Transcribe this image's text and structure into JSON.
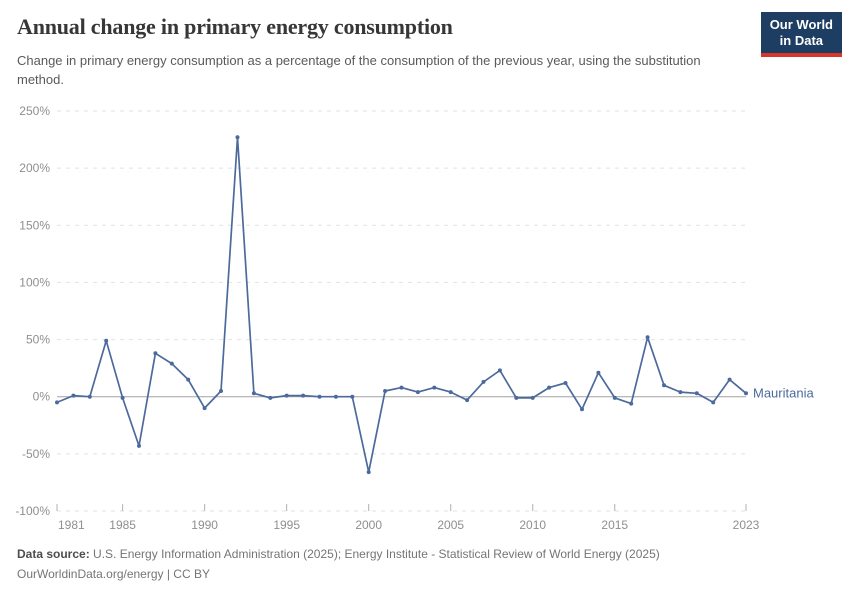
{
  "header": {
    "title": "Annual change in primary energy consumption",
    "subtitle": "Change in primary energy consumption as a percentage of the consumption of the previous year, using the substitution method.",
    "logo": {
      "line1": "Our World",
      "line2": "in Data",
      "bg_color": "#1d3d63",
      "bar_color": "#d8352b"
    }
  },
  "chart_data": {
    "type": "line",
    "title": "Annual change in primary energy consumption",
    "entity_label": "Mauritania",
    "unit": "%",
    "line_color": "#4C6A9C",
    "grid": "dashed horizontal gridlines, solid zero line",
    "legend_position": "end-of-line label",
    "xlim": [
      1981,
      2023
    ],
    "ylim": [
      -100,
      250
    ],
    "yticks": [
      250,
      200,
      150,
      100,
      50,
      0,
      -50,
      -100
    ],
    "xticks": [
      1981,
      1985,
      1990,
      1995,
      2000,
      2005,
      2010,
      2015,
      2023
    ],
    "series": [
      {
        "name": "Mauritania",
        "x": [
          1981,
          1982,
          1983,
          1984,
          1985,
          1986,
          1987,
          1988,
          1989,
          1990,
          1991,
          1992,
          1993,
          1994,
          1995,
          1996,
          1997,
          1998,
          1999,
          2000,
          2001,
          2002,
          2003,
          2004,
          2005,
          2006,
          2007,
          2008,
          2009,
          2010,
          2011,
          2012,
          2013,
          2014,
          2015,
          2016,
          2017,
          2018,
          2019,
          2020,
          2021,
          2022,
          2023
        ],
        "values": [
          -5,
          1,
          0,
          49,
          -1,
          -43,
          38,
          29,
          15,
          -10,
          5,
          227,
          3,
          -1,
          1,
          1,
          0,
          0,
          0,
          -66,
          5,
          8,
          4,
          8,
          4,
          -3,
          13,
          23,
          -1,
          -1,
          8,
          12,
          -11,
          21,
          -1,
          -6,
          52,
          10,
          4,
          3,
          -5,
          15,
          3
        ]
      }
    ],
    "colors": {
      "gridline": "#e2e2e2",
      "zero_line": "#a2a2a2",
      "axis_tick": "#b0b0b0",
      "tick_label": "#8f8f8f"
    }
  },
  "footer": {
    "datasource_label": "Data source:",
    "datasource_text": " U.S. Energy Information Administration (2025); Energy Institute - Statistical Review of World Energy (2025)",
    "link_text": "OurWorldinData.org/energy | CC BY"
  }
}
